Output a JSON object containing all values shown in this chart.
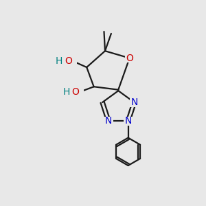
{
  "background_color": "#e8e8e8",
  "bond_color": "#1a1a1a",
  "bond_width": 1.6,
  "atom_colors": {
    "O": "#cc0000",
    "N": "#0000cc",
    "H": "#008080",
    "C": "#1a1a1a"
  },
  "font_size_heavy": 10,
  "font_size_H": 9
}
